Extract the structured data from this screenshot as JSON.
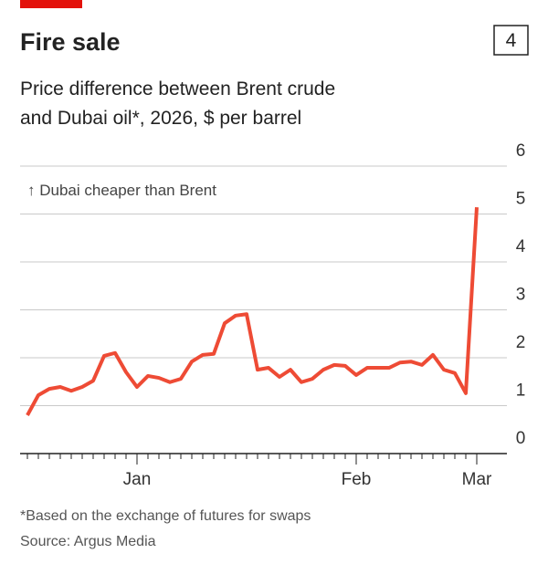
{
  "chart_data": {
    "type": "line",
    "title": "Fire sale",
    "chart_number": "4",
    "subtitle": [
      "Price difference between Brent crude",
      "and Dubai oil*, 2026, $ per barrel"
    ],
    "annotation": "↑ Dubai cheaper than Brent",
    "footnote": "*Based on the exchange of futures for swaps",
    "source": "Source: Argus Media",
    "categories": [
      null,
      null,
      null,
      null,
      null,
      null,
      null,
      null,
      null,
      null,
      "Jan",
      null,
      null,
      null,
      null,
      null,
      null,
      null,
      null,
      null,
      null,
      null,
      null,
      null,
      null,
      null,
      null,
      null,
      null,
      null,
      "Feb",
      null,
      null,
      null,
      null,
      null,
      null,
      null,
      null,
      null,
      null,
      "Mar"
    ],
    "series": [
      {
        "color": "#ee4b35",
        "values": [
          0.8,
          1.22,
          1.35,
          1.39,
          1.31,
          1.39,
          1.52,
          2.04,
          2.1,
          1.7,
          1.39,
          1.62,
          1.58,
          1.49,
          1.56,
          1.92,
          2.06,
          2.08,
          2.72,
          2.88,
          2.91,
          1.75,
          1.79,
          1.6,
          1.75,
          1.49,
          1.56,
          1.75,
          1.85,
          1.83,
          1.64,
          1.79,
          1.79,
          1.79,
          1.9,
          1.92,
          1.85,
          2.06,
          1.75,
          1.68,
          1.26,
          5.14
        ]
      }
    ],
    "ylim": [
      0,
      6
    ],
    "yticks": [
      0,
      1,
      2,
      3,
      4,
      5,
      6
    ],
    "grid": true
  }
}
